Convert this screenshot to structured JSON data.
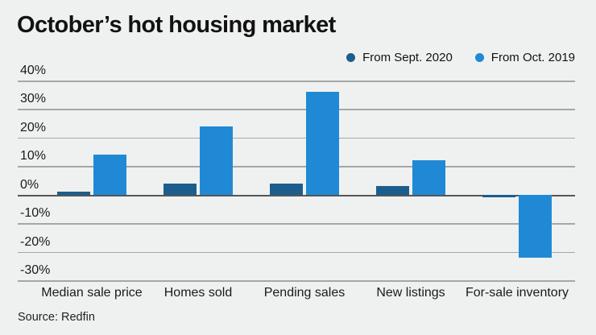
{
  "header": {
    "title": "October’s hot housing market"
  },
  "legend": {
    "items": [
      {
        "label": "From Sept. 2020",
        "color": "#1b5e8e"
      },
      {
        "label": "From Oct. 2019",
        "color": "#2089d6"
      }
    ]
  },
  "chart_data": {
    "type": "bar",
    "title": "October’s hot housing market",
    "categories": [
      "Median sale price",
      "Homes sold",
      "Pending sales",
      "New listings",
      "For-sale inventory"
    ],
    "series": [
      {
        "name": "From Sept. 2020",
        "color": "#1b5e8e",
        "values": [
          1,
          4,
          4,
          3,
          -1
        ]
      },
      {
        "name": "From Oct. 2019",
        "color": "#2089d6",
        "values": [
          14,
          24,
          36,
          12,
          -22
        ]
      }
    ],
    "unit": "%",
    "xlabel": "",
    "ylabel": "",
    "ylim": [
      -30,
      40
    ],
    "yticks": [
      40,
      30,
      20,
      10,
      0,
      -10,
      -20,
      -30
    ],
    "ytick_labels": [
      "40%",
      "30%",
      "20%",
      "10%",
      "0%",
      "-10%",
      "-20%",
      "-30%"
    ],
    "grid": "horizontal",
    "legend_position": "top-right"
  },
  "footer": {
    "source": "Source: Redfin"
  },
  "colors": {
    "background": "#eff1f0",
    "grid": "#a6a6a6",
    "zero_line": "#565656",
    "text": "#121212"
  }
}
